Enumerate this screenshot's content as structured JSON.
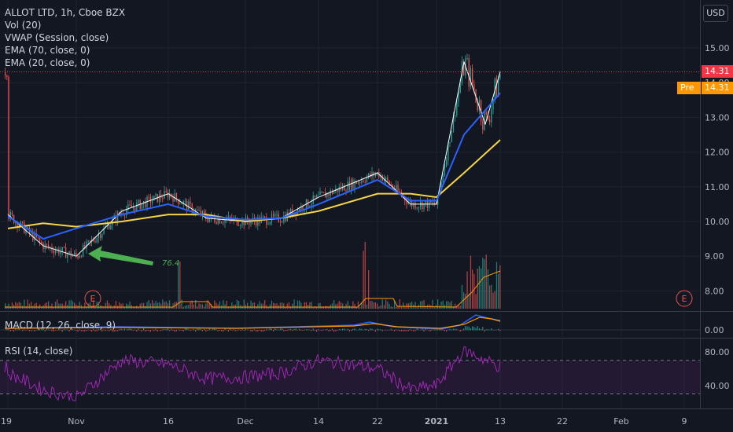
{
  "legend": {
    "title": "ALLOT LTD, 1h, Cboe BZX",
    "vol": "Vol (20)",
    "vwap": "VWAP (Session, close)",
    "ema70": "EMA (70, close, 0)",
    "ema20": "EMA (20, close, 0)"
  },
  "currency_button": "USD",
  "last_price": "14.31",
  "pre_label": "Pre",
  "pre_price": "14.31",
  "annotation_value": "76.4",
  "earnings_marker": "E",
  "macd_label": "MACD (12, 26, close, 9)",
  "rsi_label": "RSI (14, close)",
  "colors": {
    "background": "#131722",
    "up": "#26a69a",
    "down": "#ef5350",
    "ema20": "#2962ff",
    "ema70": "#f5d447",
    "vwap": "#ffffff",
    "rsi": "#9c27b0",
    "arrow": "#4caf50",
    "last_price": "#f23645",
    "pre_market": "#ff9800"
  },
  "chart_data": {
    "type": "line",
    "price_axis": {
      "ticks": [
        8.0,
        9.0,
        10.0,
        11.0,
        12.0,
        13.0,
        14.0,
        15.0
      ],
      "range": [
        7.55,
        15.6
      ]
    },
    "macd_axis": {
      "ticks": [
        0.0
      ]
    },
    "rsi_axis": {
      "ticks": [
        40.0,
        80.0
      ],
      "bands": [
        30,
        70
      ]
    },
    "time_labels": [
      "19",
      "Nov",
      "16",
      "Dec",
      "14",
      "22",
      "2021",
      "13",
      "22",
      "Feb",
      "9"
    ],
    "ema20": [
      [
        "19",
        10.15
      ],
      [
        "26",
        9.5
      ],
      [
        "Nov",
        9.8
      ],
      [
        "9",
        10.2
      ],
      [
        "16",
        10.5
      ],
      [
        "23",
        10.15
      ],
      [
        "Dec",
        10.05
      ],
      [
        "7",
        10.1
      ],
      [
        "14",
        10.5
      ],
      [
        "22",
        11.2
      ],
      [
        "28",
        10.6
      ],
      [
        "2021",
        10.6
      ],
      [
        "6",
        12.5
      ],
      [
        "13",
        13.7
      ]
    ],
    "ema70": [
      [
        "19",
        9.8
      ],
      [
        "26",
        9.95
      ],
      [
        "Nov",
        9.85
      ],
      [
        "9",
        10.0
      ],
      [
        "16",
        10.2
      ],
      [
        "23",
        10.2
      ],
      [
        "Dec",
        10.0
      ],
      [
        "7",
        10.1
      ],
      [
        "14",
        10.3
      ],
      [
        "22",
        10.8
      ],
      [
        "28",
        10.8
      ],
      [
        "2021",
        10.7
      ],
      [
        "6",
        11.4
      ],
      [
        "13",
        12.35
      ]
    ],
    "price_close": [
      [
        "19",
        10.2
      ],
      [
        "26",
        9.3
      ],
      [
        "Nov",
        9.0
      ],
      [
        "9",
        10.3
      ],
      [
        "16",
        10.8
      ],
      [
        "23",
        10.1
      ],
      [
        "Dec",
        10.0
      ],
      [
        "7",
        10.1
      ],
      [
        "14",
        10.7
      ],
      [
        "22",
        11.4
      ],
      [
        "28",
        10.5
      ],
      [
        "2021",
        10.5
      ],
      [
        "6",
        14.6
      ],
      [
        "10",
        12.8
      ],
      [
        "13",
        14.31
      ]
    ],
    "rsi": [
      [
        "19",
        55
      ],
      [
        "26",
        35
      ],
      [
        "Nov",
        25
      ],
      [
        "9",
        70
      ],
      [
        "16",
        65
      ],
      [
        "23",
        48
      ],
      [
        "Dec",
        50
      ],
      [
        "7",
        55
      ],
      [
        "14",
        70
      ],
      [
        "22",
        60
      ],
      [
        "28",
        35
      ],
      [
        "2021",
        40
      ],
      [
        "6",
        82
      ],
      [
        "13",
        62
      ]
    ]
  }
}
